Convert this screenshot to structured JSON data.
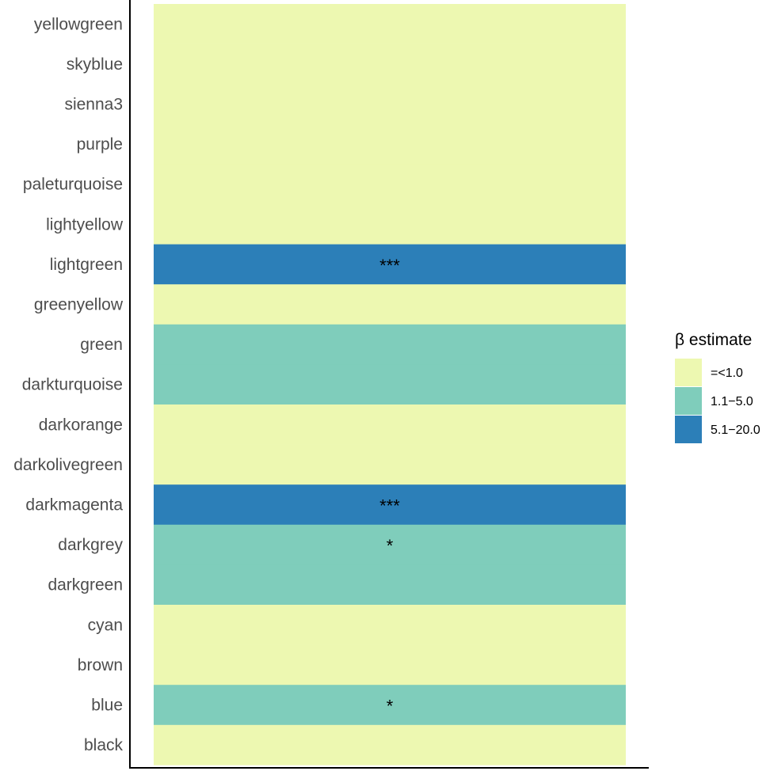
{
  "chart_data": {
    "type": "heatmap",
    "title": "",
    "xlabel": "",
    "ylabel": "",
    "categories": [
      "yellowgreen",
      "skyblue",
      "sienna3",
      "purple",
      "paleturquoise",
      "lightyellow",
      "lightgreen",
      "greenyellow",
      "green",
      "darkturquoise",
      "darkorange",
      "darkolivegreen",
      "darkmagenta",
      "darkgrey",
      "darkgreen",
      "cyan",
      "brown",
      "blue",
      "black"
    ],
    "values": [
      "=<1.0",
      "=<1.0",
      "=<1.0",
      "=<1.0",
      "=<1.0",
      "=<1.0",
      "5.1−20.0",
      "=<1.0",
      "1.1−5.0",
      "1.1−5.0",
      "=<1.0",
      "=<1.0",
      "5.1−20.0",
      "1.1−5.0",
      "1.1−5.0",
      "=<1.0",
      "=<1.0",
      "1.1−5.0",
      "=<1.0"
    ],
    "significance": [
      "",
      "",
      "",
      "",
      "",
      "",
      "***",
      "",
      "",
      "",
      "",
      "",
      "***",
      "*",
      "",
      "",
      "",
      "*",
      ""
    ],
    "legend": {
      "title": "β estimate",
      "position": "right",
      "entries": [
        {
          "label": "=<1.0",
          "color": "#edf8b1"
        },
        {
          "label": "1.1−5.0",
          "color": "#7fcdbb"
        },
        {
          "label": "5.1−20.0",
          "color": "#2c7fb8"
        }
      ]
    },
    "grid": false
  }
}
